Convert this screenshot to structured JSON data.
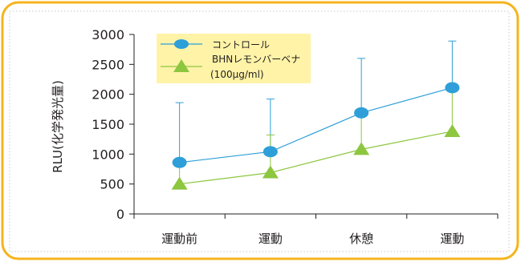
{
  "chart_data": {
    "type": "line",
    "categories": [
      "運動前",
      "運動",
      "休憩",
      "運動"
    ],
    "ylabel": "RLU(化学発光量)",
    "xlabel": "",
    "ylim": [
      0,
      3000
    ],
    "yticks": [
      0,
      500,
      1000,
      1500,
      2000,
      2500,
      3000
    ],
    "grid": false,
    "legend_position": "top-left",
    "series": [
      {
        "name": "コントロール",
        "values": [
          860,
          1040,
          1690,
          2110
        ],
        "error_upper": [
          1860,
          1920,
          2600,
          2890
        ],
        "color": "#2e9fd8",
        "marker": "circle"
      },
      {
        "name": "BHNレモンバーベナ",
        "name_sub": "(100μg/ml)",
        "values": [
          500,
          690,
          1080,
          1380
        ],
        "error_upper": [
          800,
          1320,
          1690,
          2110
        ],
        "color": "#8dc63f",
        "marker": "triangle"
      }
    ],
    "colors": {
      "frame_border": "#f5b41e",
      "legend_background": "#fff3a8",
      "axis": "#231f20"
    }
  }
}
